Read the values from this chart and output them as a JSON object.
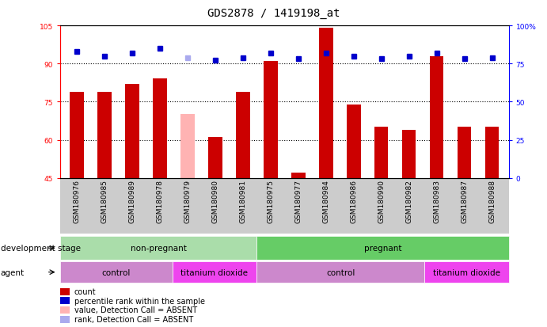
{
  "title": "GDS2878 / 1419198_at",
  "samples": [
    "GSM180976",
    "GSM180985",
    "GSM180989",
    "GSM180978",
    "GSM180979",
    "GSM180980",
    "GSM180981",
    "GSM180975",
    "GSM180977",
    "GSM180984",
    "GSM180986",
    "GSM180990",
    "GSM180982",
    "GSM180983",
    "GSM180987",
    "GSM180988"
  ],
  "bar_values": [
    79,
    79,
    82,
    84,
    70,
    61,
    79,
    91,
    47,
    104,
    74,
    65,
    64,
    93,
    65,
    65
  ],
  "bar_absent": [
    false,
    false,
    false,
    false,
    true,
    false,
    false,
    false,
    false,
    false,
    false,
    false,
    false,
    false,
    false,
    false
  ],
  "percentile_values": [
    83,
    80,
    82,
    85,
    79,
    77,
    79,
    82,
    78,
    82,
    80,
    78,
    80,
    82,
    78,
    79
  ],
  "percentile_absent": [
    false,
    false,
    false,
    false,
    true,
    false,
    false,
    false,
    false,
    false,
    false,
    false,
    false,
    false,
    false,
    false
  ],
  "ylim_left": [
    45,
    105
  ],
  "ylim_right": [
    0,
    100
  ],
  "yticks_left": [
    45,
    60,
    75,
    90,
    105
  ],
  "yticks_right": [
    0,
    25,
    50,
    75,
    100
  ],
  "ytick_labels_left": [
    "45",
    "60",
    "75",
    "90",
    "105"
  ],
  "ytick_labels_right": [
    "0",
    "25",
    "50",
    "75",
    "100%"
  ],
  "bar_color_normal": "#cc0000",
  "bar_color_absent": "#ffb3b3",
  "percentile_color_normal": "#0000cc",
  "percentile_color_absent": "#aaaaee",
  "background_color": "#ffffff",
  "grid_color": "#000000",
  "dev_stage_groups": [
    {
      "label": "non-pregnant",
      "start": 0,
      "end": 7,
      "color": "#aaddaa"
    },
    {
      "label": "pregnant",
      "start": 7,
      "end": 16,
      "color": "#66cc66"
    }
  ],
  "agent_groups": [
    {
      "label": "control",
      "start": 0,
      "end": 4,
      "color": "#cc88cc"
    },
    {
      "label": "titanium dioxide",
      "start": 4,
      "end": 7,
      "color": "#ee44ee"
    },
    {
      "label": "control",
      "start": 7,
      "end": 13,
      "color": "#cc88cc"
    },
    {
      "label": "titanium dioxide",
      "start": 13,
      "end": 16,
      "color": "#ee44ee"
    }
  ],
  "dev_stage_label": "development stage",
  "agent_label": "agent",
  "legend_items": [
    {
      "label": "count",
      "color": "#cc0000"
    },
    {
      "label": "percentile rank within the sample",
      "color": "#0000cc"
    },
    {
      "label": "value, Detection Call = ABSENT",
      "color": "#ffb3b3"
    },
    {
      "label": "rank, Detection Call = ABSENT",
      "color": "#aaaaee"
    }
  ],
  "bar_width": 0.5,
  "title_fontsize": 10,
  "tick_fontsize": 6.5,
  "label_fontsize": 8
}
